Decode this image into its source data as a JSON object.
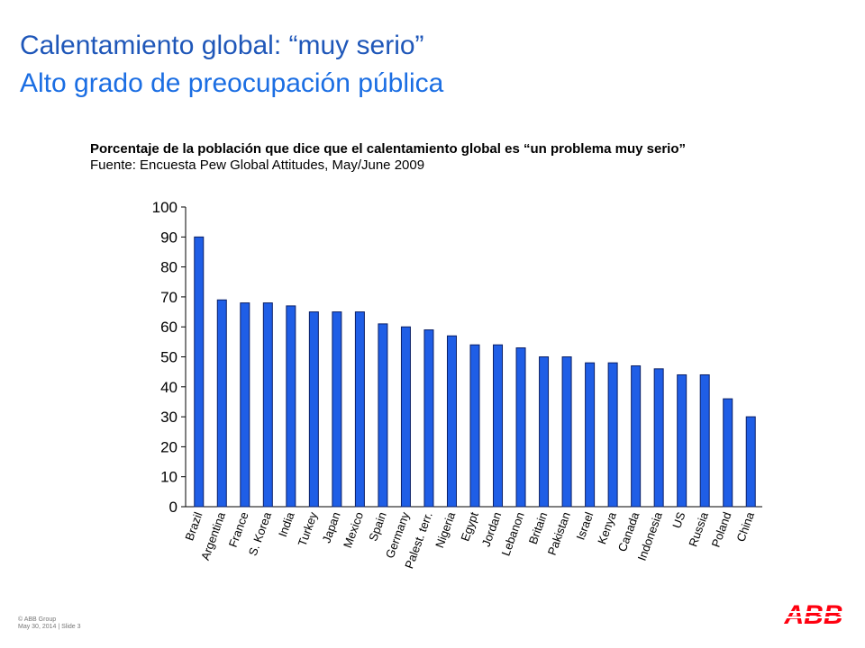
{
  "slide": {
    "title": "Calentamiento global: “muy serio”",
    "subtitle": "Alto grado de preocupación pública",
    "caption_bold": "Porcentaje de la población que dice que el calentamiento global es “un problema muy serio”",
    "caption_source": "Fuente: Encuesta Pew Global Attitudes, May/June 2009",
    "footer_line1": "© ABB Group",
    "footer_line2": "May 30, 2014 | Slide 3",
    "logo_text": "ABB"
  },
  "colors": {
    "title": "#1f57b9",
    "subtitle": "#1b6ee3",
    "bar_fill": "#1f5ee6",
    "bar_stroke": "#0a1f66",
    "logo": "#ff000f"
  },
  "chart_data": {
    "type": "bar",
    "categories": [
      "Brazil",
      "Argentina",
      "France",
      "S. Korea",
      "India",
      "Turkey",
      "Japan",
      "Mexico",
      "Spain",
      "Germany",
      "Palest. terr.",
      "Nigeria",
      "Egypt",
      "Jordan",
      "Lebanon",
      "Britain",
      "Pakistan",
      "Israel",
      "Kenya",
      "Canada",
      "Indonesia",
      "US",
      "Russia",
      "Poland",
      "China"
    ],
    "values": [
      90,
      69,
      68,
      68,
      67,
      65,
      65,
      65,
      61,
      60,
      59,
      57,
      54,
      54,
      53,
      50,
      50,
      48,
      48,
      47,
      46,
      44,
      44,
      36,
      30
    ],
    "ylim": [
      0,
      100
    ],
    "yticks": [
      "0",
      "10",
      "20",
      "30",
      "40",
      "50",
      "60",
      "70",
      "80",
      "90",
      "100"
    ],
    "grid": false,
    "legend": "none"
  }
}
